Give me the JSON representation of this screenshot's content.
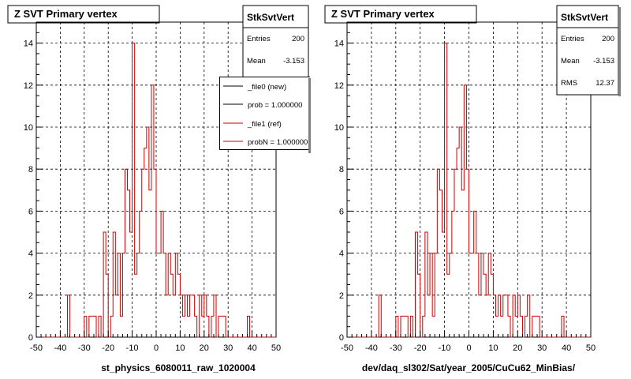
{
  "left_pad": {
    "title": "Z SVT Primary vertex",
    "xlabel": "st_physics_6080011_raw_1020004",
    "stats": {
      "name": "StkSvtVert",
      "entries_label": "Entries",
      "entries": "200",
      "mean_label": "Mean",
      "mean": "-3.153"
    },
    "legend": [
      {
        "label": "_file0 (new)",
        "color": "#000000"
      },
      {
        "label": "prob = 1.000000",
        "color": "#000000"
      },
      {
        "label": "_file1 (ref)",
        "color": "#cc0000"
      },
      {
        "label": "probN = 1.000000",
        "color": "#cc0000"
      }
    ]
  },
  "right_pad": {
    "title": "Z SVT Primary vertex",
    "xlabel": "dev/daq_sl302/Sat/year_2005/CuCu62_MinBias/",
    "stats": {
      "name": "StkSvtVert",
      "entries_label": "Entries",
      "entries": "200",
      "mean_label": "Mean",
      "mean": "-3.153",
      "rms_label": "RMS",
      "rms": "12.37"
    }
  },
  "chart_data": {
    "type": "histogram",
    "xlim": [
      -50,
      50
    ],
    "ylim": [
      0,
      15
    ],
    "xticks": [
      -50,
      -40,
      -30,
      -20,
      -10,
      0,
      10,
      20,
      30,
      40,
      50
    ],
    "yticks": [
      0,
      2,
      4,
      6,
      8,
      10,
      12,
      14
    ],
    "grid": true,
    "bin_width": 1,
    "bins": [
      [
        -37,
        2
      ],
      [
        -36,
        0
      ],
      [
        -35,
        0
      ],
      [
        -34,
        0
      ],
      [
        -33,
        0
      ],
      [
        -32,
        0
      ],
      [
        -31,
        0
      ],
      [
        -30,
        1
      ],
      [
        -29,
        0
      ],
      [
        -28,
        1
      ],
      [
        -27,
        1
      ],
      [
        -26,
        1
      ],
      [
        -25,
        0
      ],
      [
        -24,
        1
      ],
      [
        -23,
        0
      ],
      [
        -22,
        5
      ],
      [
        -21,
        3
      ],
      [
        -20,
        0
      ],
      [
        -19,
        1
      ],
      [
        -18,
        5
      ],
      [
        -17,
        2
      ],
      [
        -16,
        4
      ],
      [
        -15,
        1
      ],
      [
        -14,
        4
      ],
      [
        -13,
        8
      ],
      [
        -12,
        7
      ],
      [
        -11,
        5
      ],
      [
        -10,
        14
      ],
      [
        -9,
        3
      ],
      [
        -8,
        4
      ],
      [
        -7,
        6
      ],
      [
        -6,
        8
      ],
      [
        -5,
        9
      ],
      [
        -4,
        10
      ],
      [
        -3,
        7
      ],
      [
        -2,
        12
      ],
      [
        -1,
        8
      ],
      [
        0,
        4
      ],
      [
        1,
        4
      ],
      [
        2,
        6
      ],
      [
        3,
        4
      ],
      [
        4,
        2
      ],
      [
        5,
        4
      ],
      [
        6,
        3
      ],
      [
        7,
        2
      ],
      [
        8,
        4
      ],
      [
        9,
        3
      ],
      [
        10,
        2
      ],
      [
        11,
        1
      ],
      [
        12,
        2
      ],
      [
        13,
        1
      ],
      [
        14,
        2
      ],
      [
        15,
        2
      ],
      [
        16,
        1
      ],
      [
        17,
        0
      ],
      [
        18,
        2
      ],
      [
        19,
        1
      ],
      [
        20,
        2
      ],
      [
        21,
        1
      ],
      [
        22,
        0
      ],
      [
        23,
        1
      ],
      [
        24,
        2
      ],
      [
        25,
        0
      ],
      [
        26,
        1
      ],
      [
        27,
        1
      ],
      [
        28,
        1
      ],
      [
        29,
        0
      ],
      [
        30,
        0
      ],
      [
        31,
        0
      ],
      [
        32,
        0
      ],
      [
        33,
        0
      ],
      [
        34,
        0
      ],
      [
        35,
        0
      ],
      [
        36,
        0
      ],
      [
        37,
        0
      ],
      [
        38,
        1
      ],
      [
        39,
        0
      ]
    ],
    "series": [
      {
        "name": "_file0 (new)",
        "color": "#000000"
      },
      {
        "name": "_file1 (ref)",
        "color": "#cc0000"
      }
    ]
  }
}
